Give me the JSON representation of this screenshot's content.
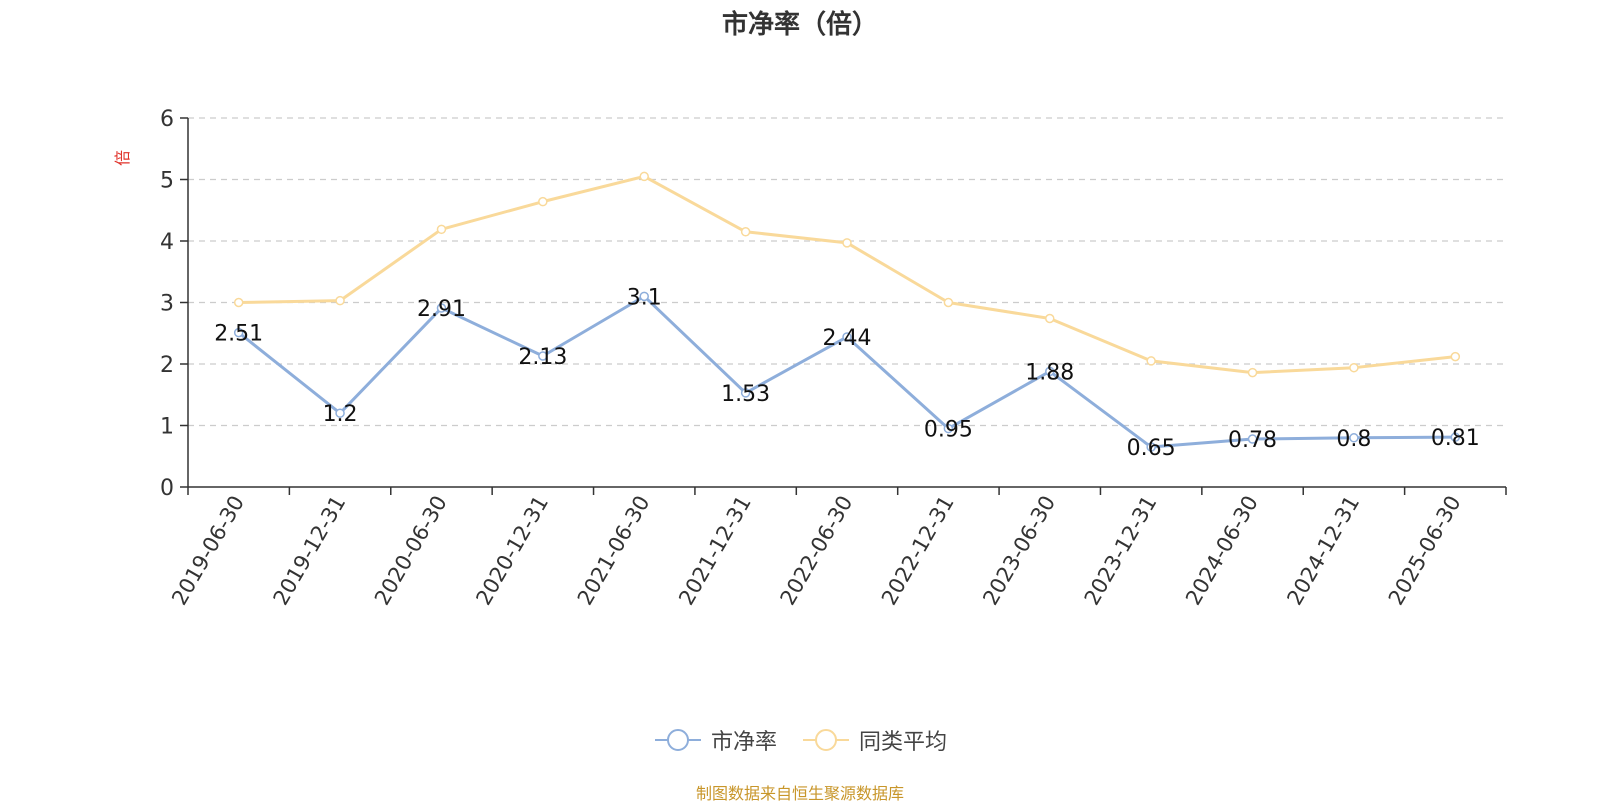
{
  "chart_data": {
    "type": "line",
    "title": "市净率（倍）",
    "ylabel": "倍",
    "xlabel": "",
    "ylim": [
      0,
      6
    ],
    "yticks": [
      0,
      1,
      2,
      3,
      4,
      5,
      6
    ],
    "grid": true,
    "legend_position": "bottom",
    "categories": [
      "2019-06-30",
      "2019-12-31",
      "2020-06-30",
      "2020-12-31",
      "2021-06-30",
      "2021-12-31",
      "2022-06-30",
      "2022-12-31",
      "2023-06-30",
      "2023-12-31",
      "2024-06-30",
      "2024-12-31",
      "2025-06-30"
    ],
    "series": [
      {
        "name": "市净率",
        "color": "#8eaedb",
        "show_labels": true,
        "values": [
          2.51,
          1.2,
          2.91,
          2.13,
          3.1,
          1.53,
          2.44,
          0.95,
          1.88,
          0.65,
          0.78,
          0.8,
          0.81
        ]
      },
      {
        "name": "同类平均",
        "color": "#f9d99a",
        "show_labels": false,
        "values": [
          3.0,
          3.03,
          4.19,
          4.64,
          5.05,
          4.15,
          3.97,
          3.0,
          2.74,
          2.05,
          1.86,
          1.94,
          2.12
        ]
      }
    ]
  },
  "colors": {
    "ylabel": "#e0332b",
    "source": "#c8962a"
  },
  "source_note": "制图数据来自恒生聚源数据库"
}
